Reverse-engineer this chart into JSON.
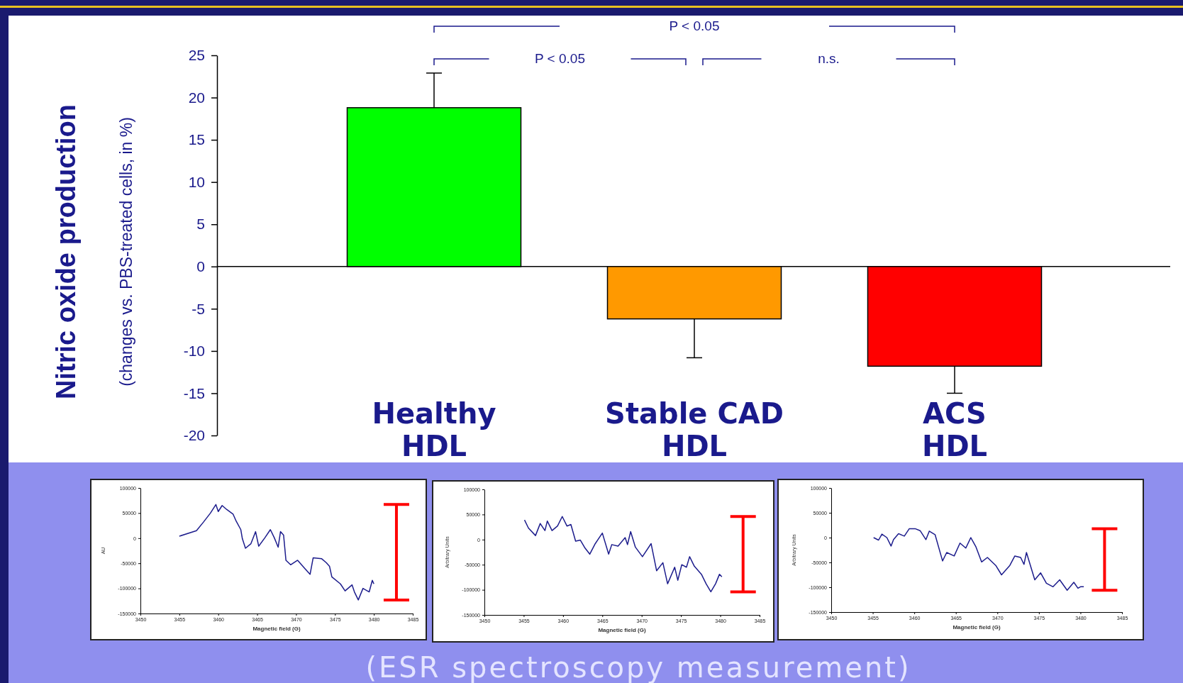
{
  "chart_data": [
    {
      "type": "bar",
      "ylabel": "Nitric oxide production\n(changes vs. PBS-treated cells, in %)",
      "categories": [
        "Healthy\nHDL",
        "Stable CAD\nHDL",
        "ACS\nHDL"
      ],
      "values": [
        18.8,
        -6.2,
        -11.8
      ],
      "colors": [
        "#00ff00",
        "#ff9900",
        "#ff0000"
      ],
      "errors": [
        [
          18.8,
          22.9
        ],
        [
          -10.8,
          -6.2
        ],
        [
          -15.0,
          -11.8
        ]
      ],
      "ylim": [
        -20,
        25
      ],
      "yticks": [
        -20,
        -15,
        -10,
        -5,
        0,
        5,
        10,
        15,
        20,
        25
      ],
      "annotations": [
        "P < 0.05",
        "P < 0.05",
        "n.s."
      ]
    },
    {
      "type": "line",
      "xlabel": "Magnetic field (G)",
      "ylabel": "AU",
      "xlim": [
        3450,
        3485
      ],
      "xticks": [
        3450,
        3455,
        3460,
        3465,
        3470,
        3475,
        3480,
        3485
      ],
      "ylim": [
        -150000,
        100000
      ],
      "yticks": [
        -150000,
        -100000,
        -50000,
        0,
        50000,
        100000
      ],
      "series": [
        {
          "color": "#1c1c8c",
          "x": [
            3455.0,
            3457.2,
            3458.1,
            3459.0,
            3459.7,
            3460.0,
            3460.5,
            3461.1,
            3461.9,
            3462.3,
            3462.9,
            3463.1,
            3463.5,
            3464.2,
            3464.8,
            3465.2,
            3466.0,
            3466.7,
            3467.2,
            3467.7,
            3468.0,
            3468.4,
            3468.7,
            3469.3,
            3470.2,
            3471.1,
            3471.8,
            3472.2,
            3473.3,
            3473.9,
            3474.3,
            3474.6,
            3475.7,
            3476.3,
            3477.2,
            3477.5,
            3478.0,
            3478.6,
            3479.4,
            3479.8,
            3480.0
          ],
          "values": [
            4000,
            15000,
            32000,
            50000,
            67000,
            53000,
            65000,
            57000,
            48000,
            34000,
            17000,
            -1000,
            -20000,
            -11000,
            13000,
            -16000,
            1000,
            17000,
            1000,
            -18000,
            13000,
            6000,
            -44000,
            -53000,
            -44000,
            -60000,
            -72000,
            -39000,
            -41000,
            -49000,
            -56000,
            -77000,
            -91000,
            -105000,
            -93000,
            -107000,
            -123000,
            -100000,
            -107000,
            -84000,
            -91000
          ]
        }
      ]
    },
    {
      "type": "line",
      "xlabel": "Magnetic field (G)",
      "ylabel": "Arbitrary Units",
      "xlim": [
        3450,
        3485
      ],
      "xticks": [
        3450,
        3455,
        3460,
        3465,
        3470,
        3475,
        3480,
        3485
      ],
      "ylim": [
        -150000,
        100000
      ],
      "yticks": [
        -150000,
        -100000,
        -50000,
        0,
        50000,
        100000
      ],
      "annotations": [
        "(ESR spectroscopy measurement)"
      ],
      "series": [
        {
          "color": "#1c1c8c",
          "x": [
            3455.1,
            3455.6,
            3456.5,
            3457.1,
            3457.7,
            3458.0,
            3458.6,
            3459.3,
            3459.9,
            3460.5,
            3461.0,
            3461.6,
            3462.2,
            3462.8,
            3463.4,
            3464.1,
            3465.0,
            3465.8,
            3466.2,
            3467.0,
            3467.9,
            3468.2,
            3468.6,
            3469.2,
            3470.1,
            3471.2,
            3471.9,
            3472.7,
            3473.3,
            3474.2,
            3474.6,
            3475.1,
            3475.7,
            3476.1,
            3476.7,
            3477.6,
            3478.2,
            3478.8,
            3479.4,
            3479.9,
            3480.2
          ],
          "values": [
            39000,
            23000,
            8000,
            32000,
            18000,
            37000,
            18000,
            27000,
            46000,
            27000,
            30000,
            -3000,
            -1000,
            -17000,
            -29000,
            -8000,
            13000,
            -29000,
            -10000,
            -13000,
            4000,
            -10000,
            16000,
            -15000,
            -34000,
            -8000,
            -62000,
            -46000,
            -88000,
            -55000,
            -81000,
            -50000,
            -55000,
            -34000,
            -53000,
            -69000,
            -88000,
            -104000,
            -88000,
            -69000,
            -74000
          ]
        }
      ]
    },
    {
      "type": "line",
      "xlabel": "Magnetic field (G)",
      "ylabel": "Arbitrary Units",
      "xlim": [
        3450,
        3485
      ],
      "xticks": [
        3450,
        3455,
        3460,
        3465,
        3470,
        3475,
        3480,
        3485
      ],
      "ylim": [
        -150000,
        100000
      ],
      "yticks": [
        -150000,
        -100000,
        -50000,
        0,
        50000,
        100000
      ],
      "series": [
        {
          "color": "#1c1c8c",
          "x": [
            3455.1,
            3455.7,
            3456.1,
            3456.7,
            3457.2,
            3457.5,
            3458.1,
            3458.8,
            3459.4,
            3460.1,
            3460.7,
            3461.4,
            3461.8,
            3462.5,
            3463.4,
            3463.9,
            3464.8,
            3465.5,
            3466.2,
            3466.8,
            3467.4,
            3468.1,
            3468.8,
            3469.8,
            3470.5,
            3471.5,
            3472.1,
            3472.8,
            3473.2,
            3473.5,
            3474.5,
            3475.2,
            3475.9,
            3476.7,
            3477.5,
            3478.4,
            3479.2,
            3479.7,
            3480.0,
            3480.4
          ],
          "values": [
            0,
            -5000,
            7000,
            0,
            -17000,
            -4000,
            8000,
            3000,
            18000,
            18000,
            14000,
            -4000,
            13000,
            6000,
            -47000,
            -30000,
            -37000,
            -11000,
            -21000,
            0,
            -18000,
            -49000,
            -40000,
            -56000,
            -75000,
            -56000,
            -37000,
            -40000,
            -54000,
            -30000,
            -85000,
            -71000,
            -92000,
            -99000,
            -85000,
            -106000,
            -90000,
            -102000,
            -99000,
            -99000
          ]
        }
      ]
    }
  ]
}
